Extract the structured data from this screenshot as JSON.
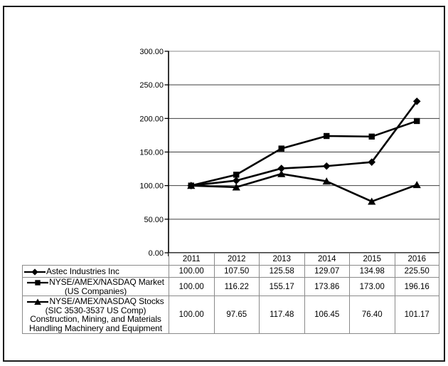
{
  "colors": {
    "series_line": "#000000",
    "gridline": "#3f3f3f",
    "plot_border": "#b3b3b3",
    "axis": "#000000",
    "table_border": "#8a8a8a",
    "outer_border": "#1c1c1c",
    "text": "#000000",
    "background": "#ffffff"
  },
  "chart_data": {
    "type": "line",
    "title": "",
    "xlabel": "",
    "ylabel": "",
    "categories": [
      "2011",
      "2012",
      "2013",
      "2014",
      "2015",
      "2016"
    ],
    "series": [
      {
        "name": "Astec Industries Inc",
        "marker": "diamond",
        "values": [
          100.0,
          107.5,
          125.58,
          129.07,
          134.98,
          225.5
        ],
        "values_display": [
          "100.00",
          "107.50",
          "125.58",
          "129.07",
          "134.98",
          "225.50"
        ]
      },
      {
        "name": "NYSE/AMEX/NASDAQ Market (US Companies)",
        "marker": "square",
        "values": [
          100.0,
          116.22,
          155.17,
          173.86,
          173.0,
          196.16
        ],
        "values_display": [
          "100.00",
          "116.22",
          "155.17",
          "173.86",
          "173.00",
          "196.16"
        ]
      },
      {
        "name": "NYSE/AMEX/NASDAQ Stocks (SIC 3530-3537 US Comp) Construction, Mining, and Materials Handling Machinery and Equipment",
        "marker": "triangle",
        "values": [
          100.0,
          97.65,
          117.48,
          106.45,
          76.4,
          101.17
        ],
        "values_display": [
          "100.00",
          "97.65",
          "117.48",
          "106.45",
          "76.40",
          "101.17"
        ]
      }
    ],
    "ylim": [
      0,
      300
    ],
    "ytick_step": 50,
    "ytick_labels": [
      "0.00",
      "50.00",
      "100.00",
      "150.00",
      "200.00",
      "250.00",
      "300.00"
    ],
    "grid": true,
    "legend_position": "table-left-column"
  }
}
